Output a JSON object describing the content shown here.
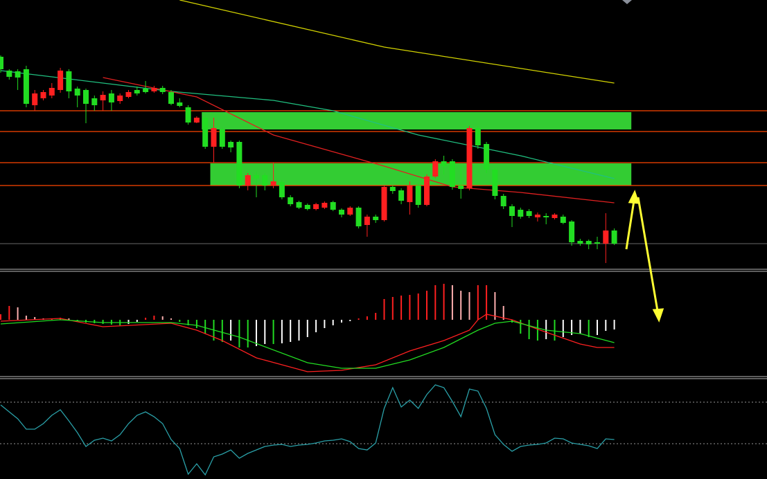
{
  "chart_data": [
    {
      "type": "candlestick",
      "ylim": [
        10,
        400
      ],
      "up_color": "#ff2020",
      "down_color": "#22dd22",
      "candles": [
        [
          318,
          320,
          295,
          300
        ],
        [
          298,
          300,
          285,
          289
        ],
        [
          297,
          300,
          270,
          288
        ],
        [
          300,
          305,
          245,
          250
        ],
        [
          248,
          270,
          240,
          265
        ],
        [
          258,
          270,
          255,
          267
        ],
        [
          262,
          280,
          258,
          273
        ],
        [
          270,
          302,
          266,
          298
        ],
        [
          297,
          300,
          258,
          268
        ],
        [
          272,
          275,
          245,
          262
        ],
        [
          270,
          272,
          222,
          250
        ],
        [
          258,
          262,
          240,
          248
        ],
        [
          255,
          268,
          240,
          263
        ],
        [
          265,
          270,
          240,
          252
        ],
        [
          254,
          265,
          250,
          262
        ],
        [
          260,
          270,
          258,
          267
        ],
        [
          270,
          275,
          262,
          265
        ],
        [
          272,
          283,
          265,
          267
        ],
        [
          268,
          276,
          266,
          273
        ],
        [
          273,
          276,
          264,
          267
        ],
        [
          267,
          270,
          248,
          250
        ],
        [
          252,
          258,
          245,
          247
        ],
        [
          245,
          248,
          220,
          223
        ],
        [
          223,
          232,
          222,
          230
        ],
        [
          230,
          233,
          185,
          188
        ],
        [
          188,
          230,
          165,
          215
        ],
        [
          213,
          216,
          185,
          188
        ],
        [
          195,
          197,
          180,
          187
        ],
        [
          195,
          197,
          128,
          132
        ],
        [
          132,
          150,
          125,
          147
        ],
        [
          147,
          152,
          115,
          142
        ],
        [
          147,
          150,
          125,
          132
        ],
        [
          132,
          165,
          128,
          138
        ],
        [
          137,
          140,
          112,
          115
        ],
        [
          115,
          118,
          102,
          105
        ],
        [
          108,
          110,
          98,
          100
        ],
        [
          104,
          106,
          96,
          98
        ],
        [
          98,
          107,
          96,
          105
        ],
        [
          100,
          109,
          98,
          107
        ],
        [
          108,
          110,
          95,
          97
        ],
        [
          97,
          99,
          86,
          90
        ],
        [
          90,
          102,
          88,
          100
        ],
        [
          100,
          102,
          70,
          73
        ],
        [
          75,
          90,
          58,
          87
        ],
        [
          87,
          90,
          78,
          82
        ],
        [
          82,
          132,
          80,
          130
        ],
        [
          130,
          132,
          120,
          124
        ],
        [
          125,
          128,
          105,
          110
        ],
        [
          108,
          138,
          90,
          132
        ],
        [
          132,
          136,
          100,
          104
        ],
        [
          104,
          148,
          102,
          145
        ],
        [
          145,
          170,
          143,
          167
        ],
        [
          167,
          175,
          148,
          160
        ],
        [
          167,
          170,
          126,
          130
        ],
        [
          132,
          160,
          113,
          127
        ],
        [
          128,
          218,
          125,
          215
        ],
        [
          215,
          218,
          185,
          190
        ],
        [
          192,
          195,
          150,
          155
        ],
        [
          155,
          158,
          112,
          117
        ],
        [
          117,
          120,
          98,
          102
        ],
        [
          102,
          105,
          72,
          88
        ],
        [
          97,
          100,
          84,
          87
        ],
        [
          95,
          98,
          85,
          88
        ],
        [
          86,
          93,
          80,
          90
        ],
        [
          88,
          92,
          76,
          86
        ],
        [
          85,
          92,
          83,
          90
        ],
        [
          87,
          90,
          76,
          78
        ],
        [
          80,
          82,
          45,
          50
        ],
        [
          52,
          55,
          45,
          48
        ],
        [
          52,
          54,
          40,
          47
        ],
        [
          50,
          58,
          40,
          48
        ],
        [
          48,
          92,
          20,
          67
        ],
        [
          67,
          70,
          46,
          48
        ]
      ],
      "series": [
        {
          "color": "#d4d400",
          "x": [
            21,
            45,
            72
          ],
          "values": [
            400,
            332,
            280
          ]
        },
        {
          "color": "#20c080",
          "x": [
            0,
            20,
            32,
            39,
            49,
            61,
            72
          ],
          "values": [
            298,
            268,
            255,
            240,
            205,
            175,
            142
          ]
        },
        {
          "color": "#e02020",
          "x": [
            12,
            23,
            32,
            45,
            53,
            61,
            72
          ],
          "values": [
            288,
            260,
            205,
            160,
            130,
            122,
            107
          ]
        }
      ],
      "hlines": [
        {
          "value": 240,
          "color": "#ff4500"
        },
        {
          "value": 210,
          "color": "#ff4500"
        },
        {
          "value": 165,
          "color": "#ff4500"
        },
        {
          "value": 132,
          "color": "#ff4500"
        },
        {
          "value": 48,
          "color": "#555555"
        }
      ],
      "zones": [
        {
          "from": 24,
          "to": 74,
          "top": 238,
          "bottom": 213,
          "color": "#33cc33"
        },
        {
          "from": 25,
          "to": 74,
          "top": 164,
          "bottom": 132,
          "color": "#33cc33"
        }
      ]
    },
    {
      "type": "macd",
      "ylim": [
        -83,
        69
      ],
      "up_color": "#ff2020",
      "up_fading_color": "#ffb0b0",
      "down_color": "#22dd22",
      "down_fading_color": "#ffffff",
      "histogram": [
        8,
        20,
        18,
        6,
        4,
        2,
        2,
        3,
        2,
        -2,
        -4,
        -5,
        -6,
        -7,
        -8,
        -6,
        -3,
        3,
        6,
        5,
        2,
        -3,
        -8,
        -12,
        -20,
        -30,
        -32,
        -30,
        -40,
        -40,
        -38,
        -35,
        -35,
        -34,
        -32,
        -30,
        -25,
        -18,
        -12,
        -8,
        -4,
        -2,
        2,
        5,
        10,
        30,
        33,
        35,
        36,
        38,
        42,
        50,
        52,
        50,
        42,
        40,
        50,
        50,
        40,
        20,
        -4,
        -20,
        -28,
        -30,
        -28,
        -30,
        -25,
        -22,
        -20,
        -25,
        -22,
        -16,
        -14
      ],
      "series": [
        {
          "color": "#ff2020",
          "x": [
            0,
            7,
            12,
            20,
            23,
            26,
            30,
            36,
            40,
            44,
            48,
            52,
            55,
            56,
            57,
            60,
            64,
            68,
            70,
            72
          ],
          "values": [
            -2,
            2,
            -10,
            -5,
            -15,
            -30,
            -55,
            -75,
            -73,
            -65,
            -45,
            -30,
            -15,
            0,
            8,
            0,
            -18,
            -35,
            -40,
            -40
          ]
        },
        {
          "color": "#22dd22",
          "x": [
            0,
            7,
            12,
            20,
            23,
            28,
            36,
            40,
            44,
            48,
            52,
            56,
            58,
            60,
            64,
            68,
            72
          ],
          "values": [
            -6,
            0,
            -4,
            -4,
            -8,
            -25,
            -62,
            -70,
            -70,
            -58,
            -40,
            -15,
            -5,
            -2,
            -15,
            -20,
            -33
          ]
        }
      ]
    },
    {
      "type": "line",
      "ylim": [
        -29,
        113
      ],
      "reference_lines": [
        80,
        20
      ],
      "series": [
        {
          "color": "#2aa0a8",
          "values": [
            76,
            66,
            56,
            41,
            41,
            49,
            61,
            69,
            53,
            36,
            16,
            25,
            28,
            24,
            33,
            49,
            61,
            66,
            59,
            49,
            26,
            13,
            -24,
            -9,
            -25,
            1,
            5,
            11,
            -1,
            6,
            11,
            16,
            18,
            19,
            16,
            18,
            19,
            21,
            24,
            25,
            27,
            23,
            13,
            11,
            21,
            71,
            101,
            73,
            83,
            71,
            91,
            105,
            101,
            81,
            59,
            99,
            96,
            71,
            33,
            19,
            9,
            16,
            18,
            19,
            21,
            28,
            27,
            21,
            19,
            17,
            13,
            27,
            26
          ]
        }
      ]
    }
  ]
}
